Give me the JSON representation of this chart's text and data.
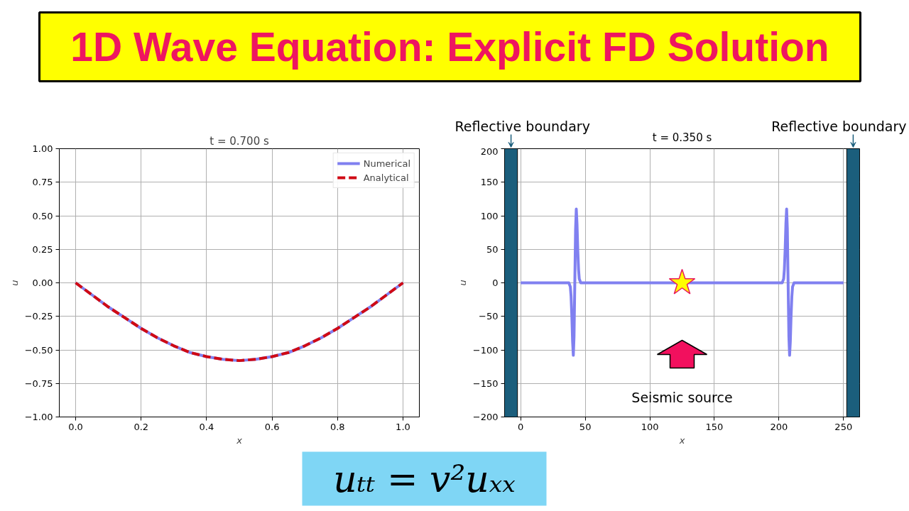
{
  "chart_data": [
    {
      "type": "other",
      "title": "1D Wave Equation: Explicit FD Solution"
    },
    {
      "type": "line",
      "title": "t = 0.700 s",
      "xlabel": "x",
      "ylabel": "u",
      "x": [
        0,
        0.05,
        0.1,
        0.15,
        0.2,
        0.25,
        0.3,
        0.35,
        0.4,
        0.45,
        0.5,
        0.55,
        0.6,
        0.65,
        0.7,
        0.75,
        0.8,
        0.85,
        0.9,
        0.95,
        1
      ],
      "series": [
        {
          "name": "Numerical",
          "color": "#8080f0",
          "line_style": "solid",
          "values": [
            0,
            -0.09,
            -0.18,
            -0.26,
            -0.34,
            -0.41,
            -0.47,
            -0.52,
            -0.55,
            -0.57,
            -0.58,
            -0.57,
            -0.55,
            -0.52,
            -0.47,
            -0.41,
            -0.34,
            -0.26,
            -0.18,
            -0.09,
            0
          ]
        },
        {
          "name": "Analytical",
          "color": "#d00a14",
          "line_style": "dashed",
          "values": [
            0,
            -0.09,
            -0.18,
            -0.26,
            -0.34,
            -0.41,
            -0.47,
            -0.52,
            -0.55,
            -0.57,
            -0.58,
            -0.57,
            -0.55,
            -0.52,
            -0.47,
            -0.41,
            -0.34,
            -0.26,
            -0.18,
            -0.09,
            0
          ]
        }
      ],
      "xlim": [
        -0.05,
        1.05
      ],
      "ylim": [
        -1,
        1
      ],
      "xticks": [
        {
          "value": 0,
          "label": "0.0"
        },
        0.2,
        0.4,
        0.6,
        0.8,
        {
          "value": 1,
          "label": "1.0"
        }
      ],
      "yticks": [
        {
          "value": -1,
          "label": "−1.00"
        },
        {
          "value": -0.75,
          "label": "−0.75"
        },
        {
          "value": -0.5,
          "label": "−0.50"
        },
        {
          "value": -0.25,
          "label": "−0.25"
        },
        {
          "value": 0,
          "label": "0.00"
        },
        0.25,
        {
          "value": 0.5,
          "label": "0.50"
        },
        0.75,
        {
          "value": 1,
          "label": "1.00"
        }
      ],
      "grid": true,
      "legend": "top right"
    },
    {
      "type": "line",
      "title": "t = 0.350 s",
      "xlabel": "x",
      "ylabel": "u",
      "x": [
        0,
        37.3,
        38.45,
        39.0,
        39.6,
        40.2,
        40.75,
        41.3,
        41.9,
        42.5,
        43.05,
        43.6,
        44.2,
        44.8,
        45.35,
        46.5,
        202.5,
        203.65,
        204.2,
        204.8,
        205.4,
        205.95,
        206.5,
        207.1,
        207.7,
        208.25,
        208.8,
        209.4,
        210.0,
        210.55,
        211.7,
        250
      ],
      "series": [
        {
          "color": "#8080f0",
          "values": [
            0,
            0,
            -6,
            -20,
            -49,
            -88,
            -108,
            -80,
            0,
            80,
            110,
            88,
            49,
            20,
            6,
            0,
            0,
            6,
            20,
            49,
            88,
            110,
            80,
            0,
            -80,
            -108,
            -88,
            -49,
            -20,
            -6,
            0,
            0
          ]
        },
        {
          "type": "scatter",
          "x": [
            125
          ],
          "values": [
            0
          ],
          "color": "#ffff00",
          "marker": "star"
        }
      ],
      "xlim": [
        -12.5,
        262.5
      ],
      "ylim": [
        -200,
        200
      ],
      "xticks": [
        0,
        50,
        100,
        150,
        200,
        250
      ],
      "yticks": [
        {
          "value": -200,
          "label": "−200"
        },
        {
          "value": -150,
          "label": "−150"
        },
        {
          "value": -100,
          "label": "−100"
        },
        {
          "value": -50,
          "label": "−50"
        },
        0,
        50,
        100,
        150,
        200
      ],
      "grid": true,
      "bands": [
        {
          "axis": "x",
          "from": -12.5,
          "to": -2.5,
          "label": "Reflective boundary",
          "color": "#1b5e7c"
        },
        {
          "axis": "x",
          "from": 252.5,
          "to": 262.5,
          "label": "Reflective boundary",
          "color": "#1b5e7c"
        }
      ],
      "annotations": [
        "Seismic source"
      ]
    },
    {
      "type": "other",
      "title": "uₜₜ = v²uₓₓ"
    }
  ]
}
